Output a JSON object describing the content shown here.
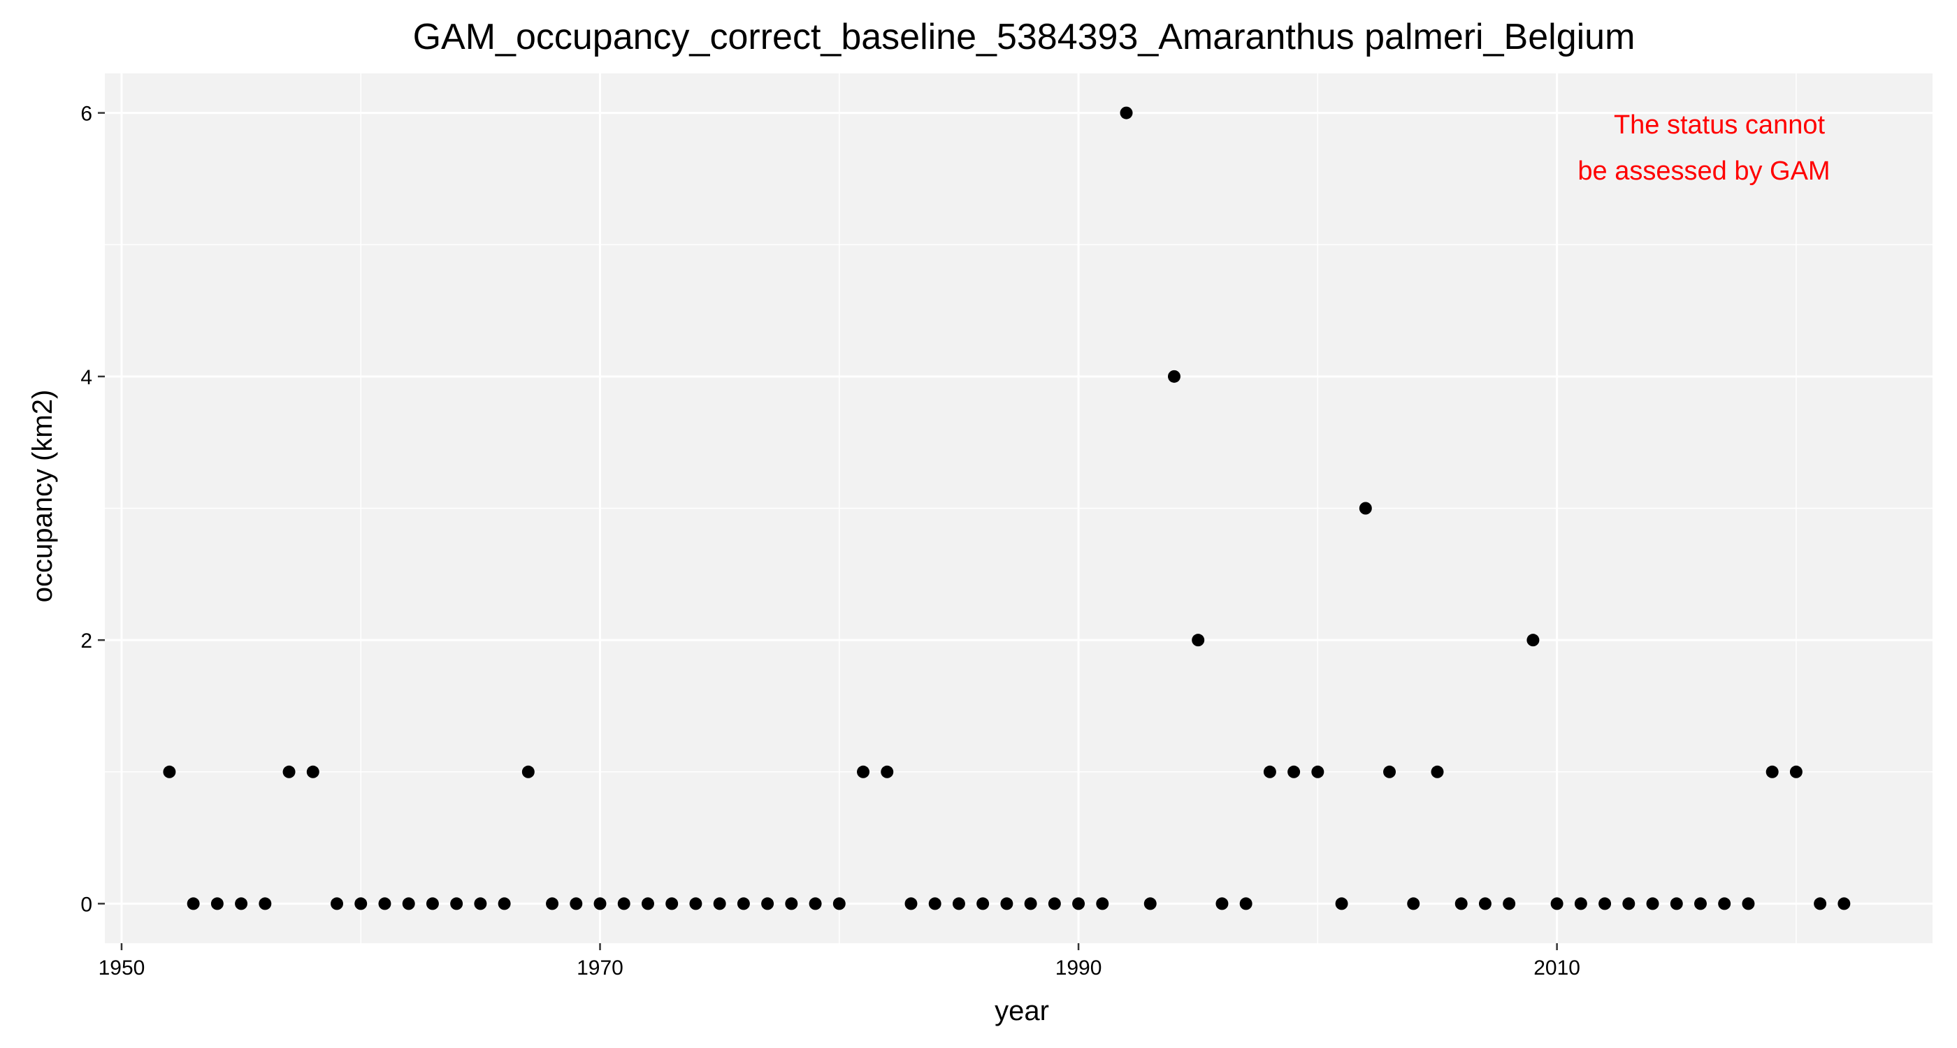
{
  "chart_data": {
    "type": "scatter",
    "title": "GAM_occupancy_correct_baseline_5384393_Amaranthus palmeri_Belgium",
    "xlabel": "year",
    "ylabel": "occupancy (km2)",
    "xlim": [
      1949.3,
      2025.7
    ],
    "ylim": [
      -0.3,
      6.3
    ],
    "x_ticks": [
      1950,
      1970,
      1990,
      2010
    ],
    "x_tick_labels": [
      "1950",
      "1970",
      "1990",
      "2010"
    ],
    "y_ticks": [
      0,
      2,
      4,
      6
    ],
    "y_tick_labels": [
      "0",
      "2",
      "4",
      "6"
    ],
    "grid": true,
    "annotation": {
      "lines": [
        "The status cannot",
        "be assessed by GAM"
      ],
      "color": "#ff0000",
      "placement": "top-right"
    },
    "series": [
      {
        "x": [
          1952,
          1953,
          1954,
          1955,
          1956,
          1957,
          1958,
          1959,
          1960,
          1961,
          1962,
          1963,
          1964,
          1965,
          1966,
          1967,
          1968,
          1969,
          1970,
          1971,
          1972,
          1973,
          1974,
          1975,
          1976,
          1977,
          1978,
          1979,
          1980,
          1981,
          1982,
          1983,
          1984,
          1985,
          1986,
          1987,
          1988,
          1989,
          1990,
          1991,
          1992,
          1993,
          1994,
          1995,
          1996,
          1997,
          1998,
          1999,
          2000,
          2001,
          2002,
          2003,
          2004,
          2005,
          2006,
          2007,
          2008,
          2009,
          2010,
          2011,
          2012,
          2013,
          2014,
          2015,
          2016,
          2017,
          2018,
          2019,
          2020,
          2021,
          2022
        ],
        "y": [
          1,
          0,
          0,
          0,
          0,
          1,
          1,
          0,
          0,
          0,
          0,
          0,
          0,
          0,
          0,
          1,
          0,
          0,
          0,
          0,
          0,
          0,
          0,
          0,
          0,
          0,
          0,
          0,
          0,
          1,
          1,
          0,
          0,
          0,
          0,
          0,
          0,
          0,
          0,
          0,
          6,
          0,
          4,
          2,
          0,
          0,
          1,
          1,
          1,
          0,
          3,
          1,
          0,
          1,
          0,
          0,
          0,
          2,
          0,
          0,
          0,
          0,
          0,
          0,
          0,
          0,
          0,
          1,
          1,
          0,
          0
        ]
      }
    ],
    "colors": {
      "panel_background": "#f2f2f2",
      "grid_line": "#ffffff",
      "point": "#000000",
      "annotation": "#ff0000"
    }
  }
}
